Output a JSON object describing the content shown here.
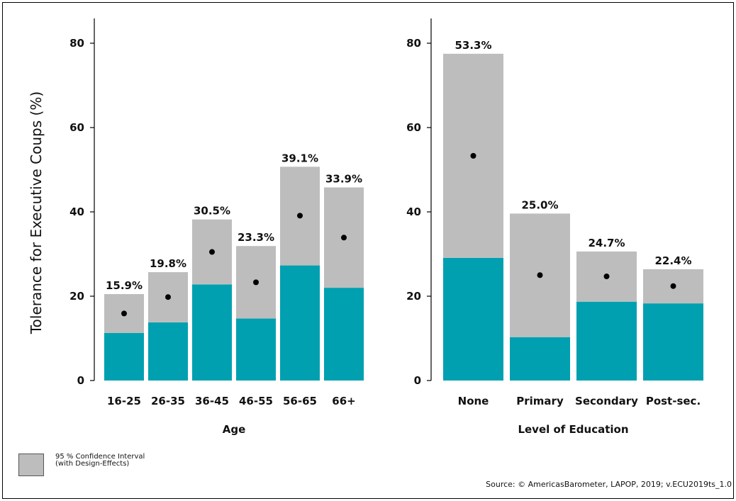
{
  "ylabel": "Tolerance for Executive Coups (%)",
  "yticks": [
    0,
    20,
    40,
    60,
    80
  ],
  "colors": {
    "ci": "#bdbdbd",
    "bar": "#00a0b0",
    "point": "#000000"
  },
  "chart_data": [
    {
      "type": "bar",
      "xlabel": "Age",
      "ylim": [
        0,
        85
      ],
      "categories": [
        "16-25",
        "26-35",
        "36-45",
        "46-55",
        "56-65",
        "66+"
      ],
      "values": [
        15.9,
        19.8,
        30.5,
        23.3,
        39.1,
        33.9
      ],
      "value_labels": [
        "15.9%",
        "19.8%",
        "30.5%",
        "23.3%",
        "39.1%",
        "33.9%"
      ],
      "ci_lower": [
        11.3,
        13.8,
        22.8,
        14.7,
        27.3,
        22.0
      ],
      "ci_upper": [
        20.5,
        25.7,
        38.2,
        31.9,
        50.7,
        45.8
      ]
    },
    {
      "type": "bar",
      "xlabel": "Level of Education",
      "ylim": [
        0,
        85
      ],
      "categories": [
        "None",
        "Primary",
        "Secondary",
        "Post-sec."
      ],
      "values": [
        53.3,
        25.0,
        24.7,
        22.4
      ],
      "value_labels": [
        "53.3%",
        "25.0%",
        "24.7%",
        "22.4%"
      ],
      "ci_lower": [
        29.1,
        10.3,
        18.7,
        18.3
      ],
      "ci_upper": [
        77.5,
        39.6,
        30.6,
        26.4
      ]
    }
  ],
  "legend": {
    "line1": "95 % Confidence Interval",
    "line2": "(with Design-Effects)"
  },
  "source": "Source: © AmericasBarometer, LAPOP, 2019; v.ECU2019ts_1.0"
}
